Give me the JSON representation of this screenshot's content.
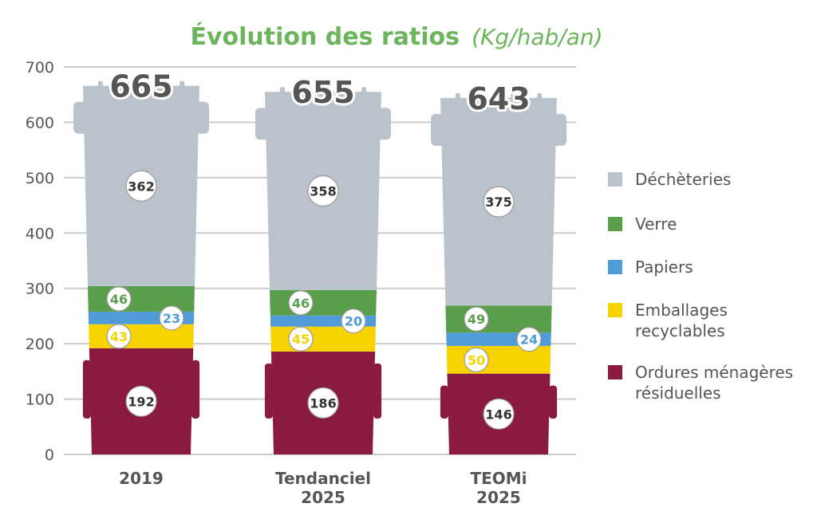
{
  "chart_data": {
    "type": "bar",
    "stacked": true,
    "title": "Évolution des ratios",
    "title_unit": "(Kg/hab/an)",
    "categories": [
      [
        "2019"
      ],
      [
        "Tendanciel",
        "2025"
      ],
      [
        "TEOMi",
        "2025"
      ]
    ],
    "series": [
      {
        "name": "Ordures ménagères résiduelles",
        "legend_lines": [
          "Ordures ménagères",
          "résiduelles"
        ],
        "color": "#8b1a41",
        "values": [
          192,
          186,
          146
        ]
      },
      {
        "name": "Emballages recyclables",
        "legend_lines": [
          "Emballages",
          "recyclables"
        ],
        "color": "#f7d300",
        "values": [
          43,
          45,
          50
        ]
      },
      {
        "name": "Papiers",
        "legend_lines": [
          "Papiers"
        ],
        "color": "#4f9bd8",
        "values": [
          23,
          20,
          24
        ]
      },
      {
        "name": "Verre",
        "legend_lines": [
          "Verre"
        ],
        "color": "#5a9e4b",
        "values": [
          46,
          46,
          49
        ]
      },
      {
        "name": "Déchèteries",
        "legend_lines": [
          "Déchèteries"
        ],
        "color": "#bac3cc",
        "values": [
          362,
          358,
          375
        ]
      }
    ],
    "totals": [
      "665",
      "655",
      "643"
    ],
    "yticks": [
      0,
      100,
      200,
      300,
      400,
      500,
      600,
      700
    ],
    "ylim": [
      0,
      700
    ],
    "grid": true,
    "legend_position": "right",
    "title_color": "#6cb55c",
    "text_color": "#555555",
    "grid_color": "#cccccc"
  }
}
